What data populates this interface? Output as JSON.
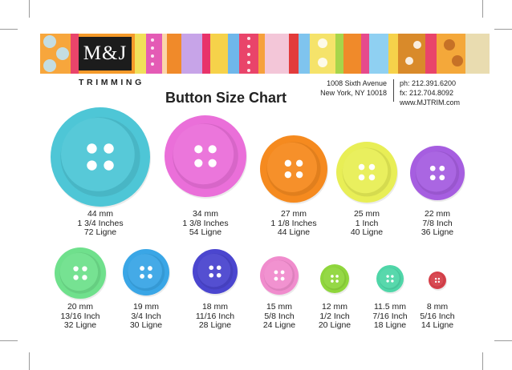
{
  "brand": {
    "logo": "M&J",
    "tagline": "TRIMMING"
  },
  "title": "Button Size Chart",
  "address": {
    "line1": "1008 Sixth Avenue",
    "line2": "New York, NY 10018"
  },
  "contact": {
    "phone": "ph: 212.391.6200",
    "fax": "fx:  212.704.8092",
    "web": "www.MJTRIM.com"
  },
  "buttons": [
    {
      "mm": "44 mm",
      "inch": "1 3/4 Inches",
      "ligne": "72 Ligne",
      "color": "#4ec6d6"
    },
    {
      "mm": "34 mm",
      "inch": "1 3/8 Inches",
      "ligne": "54 Ligne",
      "color": "#ea6fd9"
    },
    {
      "mm": "27 mm",
      "inch": "1 1/8 Inches",
      "ligne": "44 Ligne",
      "color": "#f58a1f"
    },
    {
      "mm": "25 mm",
      "inch": "1 Inch",
      "ligne": "40 Ligne",
      "color": "#e8ee56"
    },
    {
      "mm": "22 mm",
      "inch": "7/8 Inch",
      "ligne": "36 Ligne",
      "color": "#a65ee0"
    },
    {
      "mm": "20 mm",
      "inch": "13/16 Inch",
      "ligne": "32 Ligne",
      "color": "#6fe08c"
    },
    {
      "mm": "19 mm",
      "inch": "3/4 Inch",
      "ligne": "30 Ligne",
      "color": "#3aa6e6"
    },
    {
      "mm": "18 mm",
      "inch": "11/16 Inch",
      "ligne": "28 Ligne",
      "color": "#4b46cf"
    },
    {
      "mm": "15 mm",
      "inch": "5/8 Inch",
      "ligne": "24 Ligne",
      "color": "#f08ccd"
    },
    {
      "mm": "12 mm",
      "inch": "1/2 Inch",
      "ligne": "20 Ligne",
      "color": "#8fd63c"
    },
    {
      "mm": "11.5 mm",
      "inch": "7/16 Inch",
      "ligne": "18 Ligne",
      "color": "#4fd6a8"
    },
    {
      "mm": "8 mm",
      "inch": "5/16 Inch",
      "ligne": "14 Ligne",
      "color": "#d6404a"
    }
  ]
}
